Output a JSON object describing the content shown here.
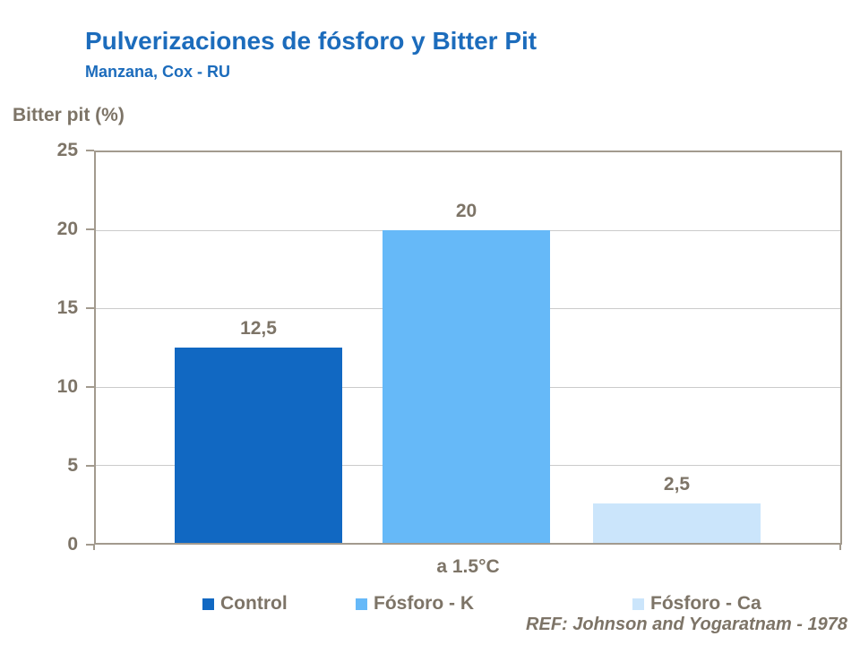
{
  "title": "Pulverizaciones de fósforo y Bitter Pit",
  "subtitle": "Manzana, Cox - RU",
  "reference": "REF: Johnson and Yogaratnam - 1978",
  "colors": {
    "title_blue": "#1c6cbc",
    "text_brown": "#7d7467",
    "axis_line": "#a29a8e",
    "gridline": "#cbcbcb",
    "bar_control": "#1168c2",
    "bar_fosforo_k": "#66b9f8",
    "bar_fosforo_ca": "#cbe5fb"
  },
  "chart_data": {
    "type": "bar",
    "title": "Pulverizaciones de fósforo y Bitter Pit",
    "subtitle": "Manzana, Cox - RU",
    "categories": [
      "a 1.5°C"
    ],
    "series": [
      {
        "name": "Control",
        "values": [
          12.5
        ],
        "display_label": "12,5",
        "color": "#1168c2"
      },
      {
        "name": "Fósforo - K",
        "values": [
          20
        ],
        "display_label": "20",
        "color": "#66b9f8"
      },
      {
        "name": "Fósforo - Ca",
        "values": [
          2.5
        ],
        "display_label": "2,5",
        "color": "#cbe5fb"
      }
    ],
    "xlabel": "",
    "ylabel": "Bitter pit (%)",
    "ylim": [
      0,
      25
    ],
    "yticks": [
      0,
      5,
      10,
      15,
      20,
      25
    ],
    "grid": true,
    "legend_position": "bottom",
    "annotation": "REF: Johnson and Yogaratnam - 1978"
  }
}
